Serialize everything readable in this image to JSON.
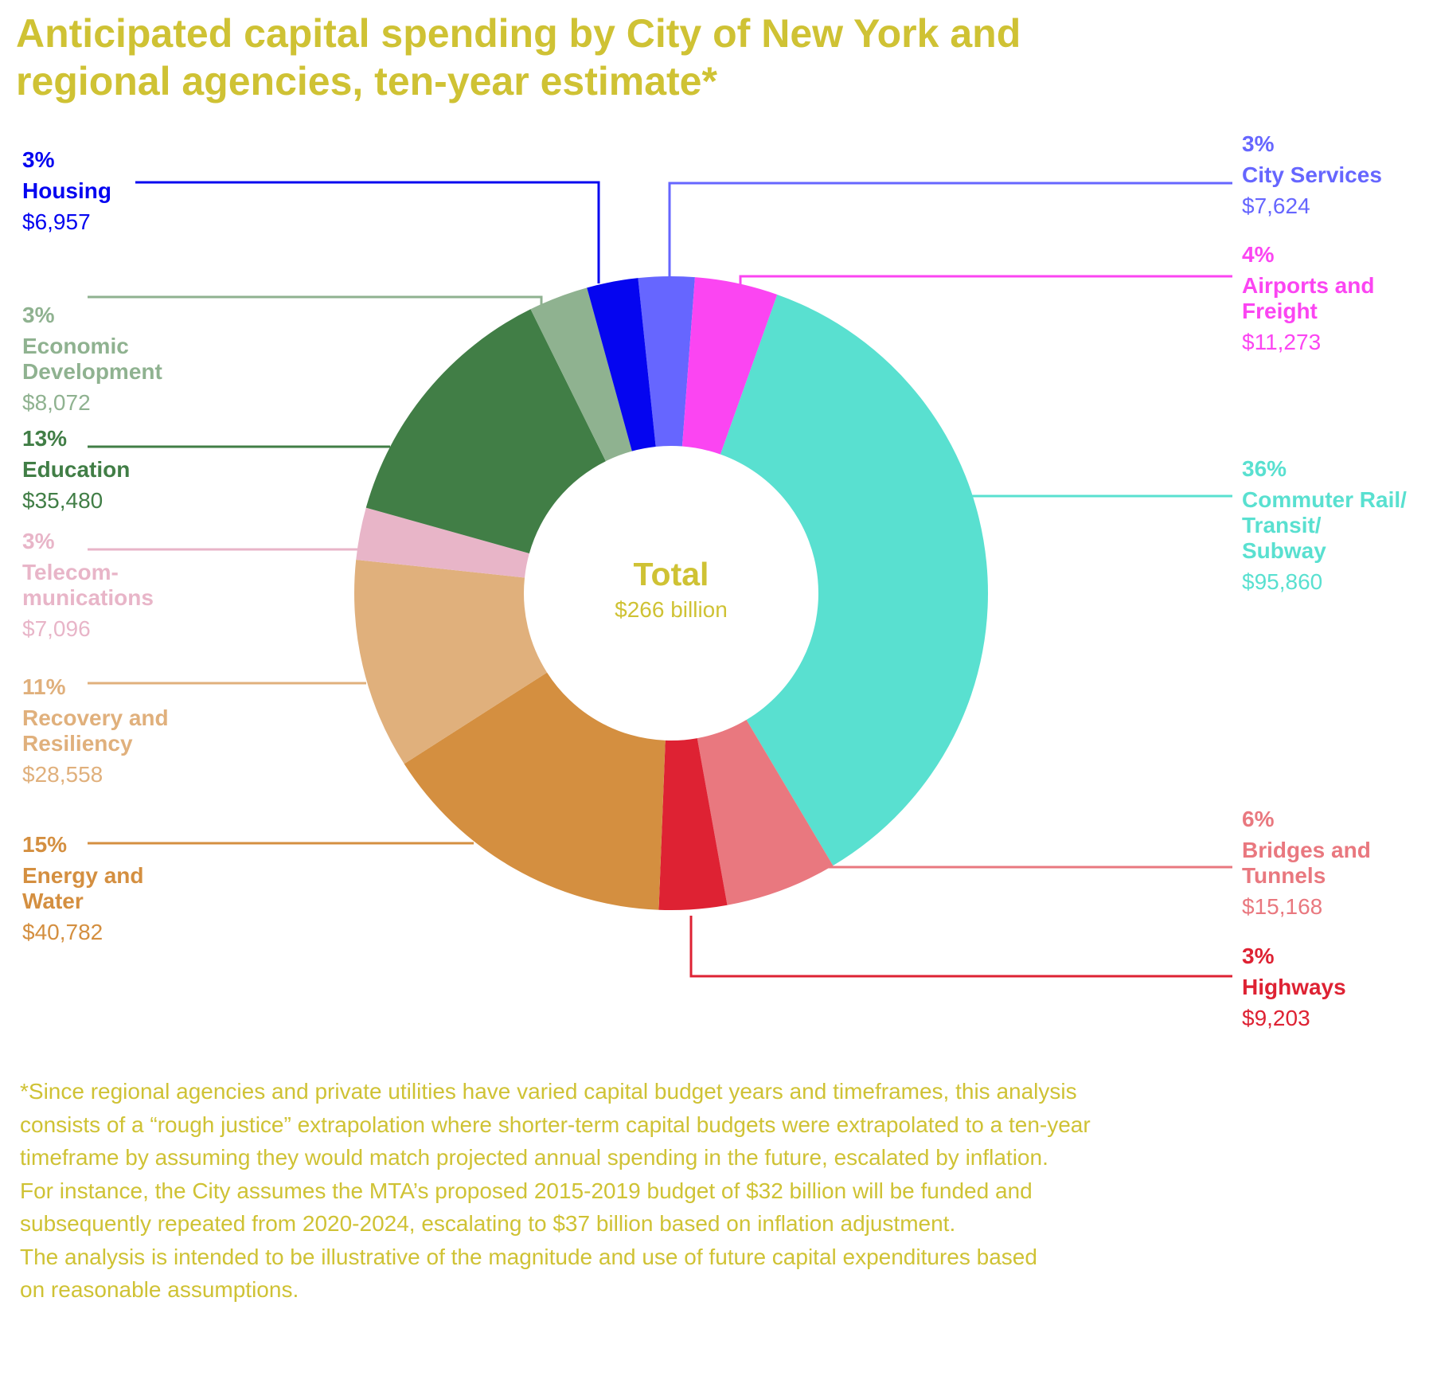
{
  "title_lines": [
    "Anticipated capital spending by City of New York and",
    "regional agencies, ten-year estimate*"
  ],
  "chart_data": {
    "type": "pie",
    "variant": "donut",
    "title": "Anticipated capital spending by City of New York and regional agencies, ten-year estimate*",
    "center_label": "Total",
    "center_value": "$266 billion",
    "slices": [
      {
        "name": "City Services",
        "label_lines": [
          "City Services"
        ],
        "percent_label": "3%",
        "value_label": "$7,624",
        "value": 7624,
        "color": "#6666ff"
      },
      {
        "name": "Airports and Freight",
        "label_lines": [
          "Airports and",
          "Freight"
        ],
        "percent_label": "4%",
        "value_label": "$11,273",
        "value": 11273,
        "color": "#fb45f2"
      },
      {
        "name": "Commuter Rail/ Transit/ Subway",
        "label_lines": [
          "Commuter Rail/",
          "Transit/",
          "Subway"
        ],
        "percent_label": "36%",
        "value_label": "$95,860",
        "value": 95860,
        "color": "#59e0d0"
      },
      {
        "name": "Bridges and Tunnels",
        "label_lines": [
          "Bridges and",
          "Tunnels"
        ],
        "percent_label": "6%",
        "value_label": "$15,168",
        "value": 15168,
        "color": "#e9787f"
      },
      {
        "name": "Highways",
        "label_lines": [
          "Highways"
        ],
        "percent_label": "3%",
        "value_label": "$9,203",
        "value": 9203,
        "color": "#de2233"
      },
      {
        "name": "Energy and Water",
        "label_lines": [
          "Energy and",
          "Water"
        ],
        "percent_label": "15%",
        "value_label": "$40,782",
        "value": 40782,
        "color": "#d48f40"
      },
      {
        "name": "Recovery and Resiliency",
        "label_lines": [
          "Recovery and",
          "Resiliency"
        ],
        "percent_label": "11%",
        "value_label": "$28,558",
        "value": 28558,
        "color": "#e0b07c"
      },
      {
        "name": "Telecommunications",
        "label_lines": [
          "Telecom-",
          "munications"
        ],
        "percent_label": "3%",
        "value_label": "$7,096",
        "value": 7096,
        "color": "#e8b5c8"
      },
      {
        "name": "Education",
        "label_lines": [
          "Education"
        ],
        "percent_label": "13%",
        "value_label": "$35,480",
        "value": 35480,
        "color": "#417e46"
      },
      {
        "name": "Economic Development",
        "label_lines": [
          "Economic",
          "Development"
        ],
        "percent_label": "3%",
        "value_label": "$8,072",
        "value": 8072,
        "color": "#8fb290"
      },
      {
        "name": "Housing",
        "label_lines": [
          "Housing"
        ],
        "percent_label": "3%",
        "value_label": "$6,957",
        "value": 6957,
        "color": "#0505f0"
      }
    ]
  },
  "footnote_lines": [
    "*Since regional agencies and private utilities have varied capital budget years and timeframes, this analysis",
    "consists of a “rough justice” extrapolation where shorter-term capital budgets were extrapolated to a ten-year",
    "timeframe by assuming they would match projected annual spending in the future, escalated by inflation.",
    "For instance, the City assumes the MTA’s proposed 2015-2019 budget of $32 billion will be funded and",
    "subsequently repeated from 2020-2024, escalating to $37 billion based on inflation adjustment.",
    "The analysis is intended to be illustrative of the magnitude and use of future capital expenditures based",
    "on reasonable assumptions."
  ],
  "colors": {
    "accent": "#cfc234"
  }
}
